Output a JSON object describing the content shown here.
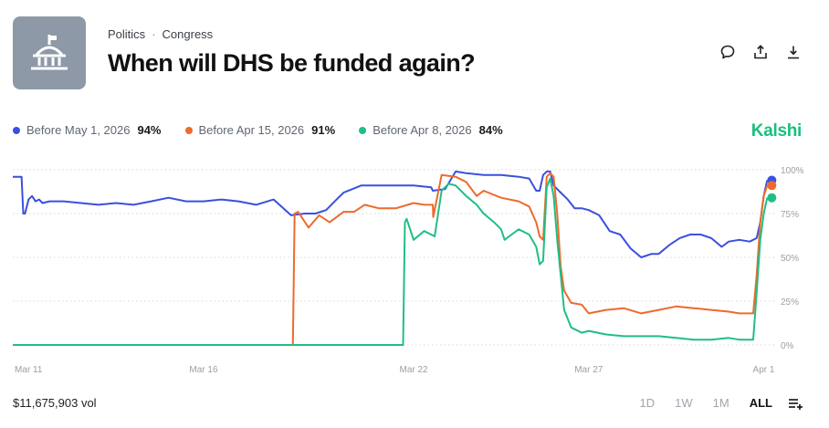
{
  "header": {
    "category": "Politics",
    "subcategory": "Congress",
    "title": "When will DHS be funded again?",
    "thumbnail_icon": "capitol-building-icon",
    "actions": [
      "comment-icon",
      "share-icon",
      "download-icon"
    ]
  },
  "brand": "Kalshi",
  "legend": [
    {
      "label": "Before May 1, 2026",
      "value": "94%",
      "color": "#3b4fe0"
    },
    {
      "label": "Before Apr 15, 2026",
      "value": "91%",
      "color": "#ee6a2c"
    },
    {
      "label": "Before Apr 8, 2026",
      "value": "84%",
      "color": "#1fbf84"
    }
  ],
  "footer": {
    "volume": "$11,675,903 vol",
    "ranges": [
      "1D",
      "1W",
      "1M",
      "ALL"
    ],
    "active_range": "ALL"
  },
  "chart_data": {
    "type": "line",
    "x_ticks": [
      "Mar 11",
      "Mar 16",
      "Mar 22",
      "Mar 27",
      "Apr 1"
    ],
    "x_tick_days": [
      0,
      5,
      11,
      16,
      21
    ],
    "xlim": [
      -0.45,
      21.3
    ],
    "y_ticks": [
      "0%",
      "25%",
      "50%",
      "75%",
      "100%"
    ],
    "y_tick_values": [
      0,
      25,
      50,
      75,
      100
    ],
    "ylim": [
      0,
      100
    ],
    "grid": true,
    "series": [
      {
        "name": "Before May 1, 2026",
        "color": "#3b4fe0",
        "x": [
          -0.45,
          -0.2,
          -0.15,
          -0.1,
          0.0,
          0.1,
          0.2,
          0.3,
          0.4,
          0.6,
          1.0,
          1.5,
          2.0,
          2.5,
          3.0,
          3.5,
          4.0,
          4.5,
          5.0,
          5.5,
          6.0,
          6.5,
          7.0,
          7.5,
          7.9,
          8.2,
          8.5,
          8.8,
          9.0,
          9.5,
          10.0,
          10.5,
          11.0,
          11.5,
          11.55,
          11.9,
          12.2,
          12.5,
          13.0,
          13.5,
          14.0,
          14.3,
          14.5,
          14.6,
          14.7,
          14.8,
          14.9,
          15.0,
          15.2,
          15.4,
          15.6,
          15.8,
          16.0,
          16.3,
          16.6,
          16.9,
          17.2,
          17.5,
          17.8,
          18.0,
          18.3,
          18.6,
          18.9,
          19.2,
          19.5,
          19.8,
          20.0,
          20.3,
          20.6,
          20.8,
          20.9,
          21.0,
          21.1
        ],
        "y": [
          96,
          96,
          75,
          75,
          83,
          85,
          82,
          83,
          81,
          82,
          82,
          81,
          80,
          81,
          80,
          82,
          84,
          82,
          82,
          83,
          82,
          80,
          83,
          74,
          75,
          75,
          77,
          83,
          87,
          91,
          91,
          91,
          91,
          90,
          88,
          89,
          99,
          98,
          97,
          97,
          96,
          95,
          88,
          88,
          97,
          99,
          99,
          91,
          87,
          83,
          78,
          78,
          77,
          74,
          65,
          63,
          55,
          50,
          52,
          52,
          57,
          61,
          63,
          63,
          61,
          56,
          59,
          60,
          59,
          61,
          70,
          85,
          94
        ]
      },
      {
        "name": "Before Apr 15, 2026",
        "color": "#ee6a2c",
        "x": [
          -0.45,
          7.55,
          7.6,
          7.7,
          8.0,
          8.3,
          8.6,
          9.0,
          9.3,
          9.6,
          10.0,
          10.5,
          11.0,
          11.3,
          11.55,
          11.56,
          11.8,
          12.2,
          12.5,
          12.8,
          13.0,
          13.5,
          14.0,
          14.3,
          14.5,
          14.6,
          14.7,
          14.8,
          14.9,
          15.0,
          15.1,
          15.2,
          15.3,
          15.5,
          15.8,
          16.0,
          16.5,
          17.0,
          17.5,
          18.0,
          18.5,
          19.0,
          19.5,
          20.0,
          20.3,
          20.7,
          20.8,
          20.9,
          21.0,
          21.1
        ],
        "y": [
          0,
          0,
          75,
          76,
          67,
          74,
          70,
          76,
          76,
          80,
          78,
          78,
          81,
          80,
          80,
          73,
          97,
          96,
          93,
          85,
          88,
          84,
          82,
          79,
          70,
          62,
          60,
          96,
          98,
          96,
          75,
          45,
          31,
          24,
          23,
          18,
          20,
          21,
          18,
          20,
          22,
          21,
          20,
          19,
          18,
          18,
          40,
          70,
          85,
          91
        ]
      },
      {
        "name": "Before Apr 8, 2026",
        "color": "#1fbf84",
        "x": [
          -0.45,
          10.7,
          10.75,
          10.8,
          11.0,
          11.3,
          11.5,
          11.6,
          11.8,
          12.0,
          12.2,
          12.5,
          12.8,
          13.0,
          13.3,
          13.5,
          13.6,
          13.8,
          14.0,
          14.3,
          14.5,
          14.6,
          14.7,
          14.8,
          14.9,
          15.0,
          15.1,
          15.2,
          15.3,
          15.5,
          15.8,
          16.0,
          16.5,
          17.0,
          17.5,
          18.0,
          18.5,
          19.0,
          19.5,
          20.0,
          20.3,
          20.7,
          20.8,
          20.9,
          21.0,
          21.1
        ],
        "y": [
          0,
          0,
          70,
          72,
          60,
          65,
          63,
          62,
          88,
          92,
          91,
          85,
          80,
          75,
          70,
          66,
          60,
          63,
          66,
          63,
          56,
          46,
          48,
          90,
          95,
          85,
          60,
          40,
          20,
          10,
          7,
          8,
          6,
          5,
          5,
          5,
          4,
          3,
          3,
          4,
          3,
          3,
          30,
          60,
          75,
          84
        ]
      }
    ]
  }
}
